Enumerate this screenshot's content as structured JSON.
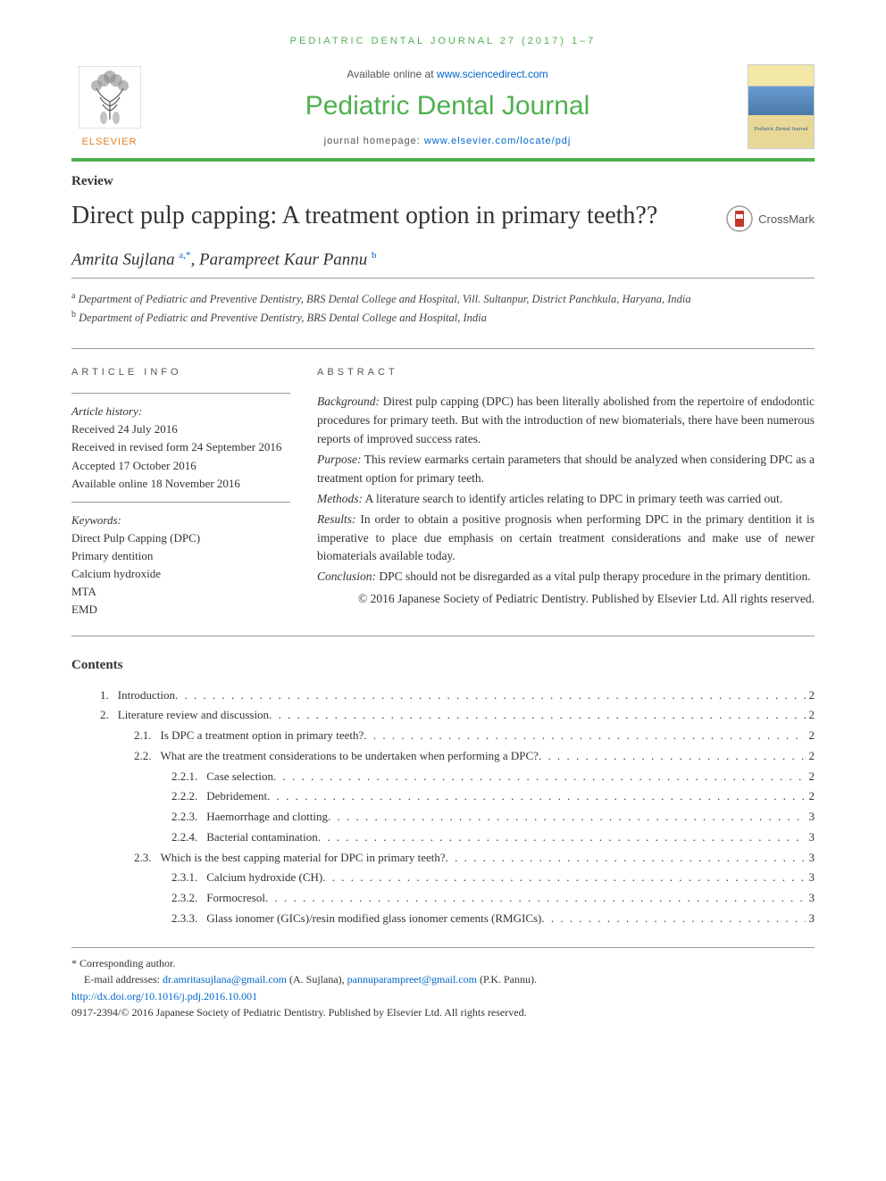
{
  "running_head": "PEDIATRIC DENTAL JOURNAL 27 (2017) 1–7",
  "masthead": {
    "available_prefix": "Available online at ",
    "available_link": "www.sciencedirect.com",
    "journal_name": "Pediatric Dental Journal",
    "homepage_prefix": "journal homepage: ",
    "homepage_link": "www.elsevier.com/locate/pdj",
    "elsevier_label": "ELSEVIER",
    "cover_title": "Pediatric Dental Journal"
  },
  "article_type": "Review",
  "title": "Direct pulp capping: A treatment option in primary teeth??",
  "crossmark_label": "CrossMark",
  "authors": {
    "a1_name": "Amrita Sujlana ",
    "a1_sup": "a,*",
    "sep": ", ",
    "a2_name": "Parampreet Kaur Pannu ",
    "a2_sup": "b"
  },
  "affiliations": {
    "a": "Department of Pediatric and Preventive Dentistry, BRS Dental College and Hospital, Vill. Sultanpur, District Panchkula, Haryana, India",
    "b": "Department of Pediatric and Preventive Dentistry, BRS Dental College and Hospital, India"
  },
  "info": {
    "heading": "ARTICLE INFO",
    "history_heading": "Article history:",
    "received": "Received 24 July 2016",
    "revised": "Received in revised form 24 September 2016",
    "accepted": "Accepted 17 October 2016",
    "online": "Available online 18 November 2016",
    "keywords_heading": "Keywords:",
    "kw1": "Direct Pulp Capping (DPC)",
    "kw2": "Primary dentition",
    "kw3": "Calcium hydroxide",
    "kw4": "MTA",
    "kw5": "EMD"
  },
  "abstract": {
    "heading": "ABSTRACT",
    "background_label": "Background:",
    "background": " Direst pulp capping (DPC) has been literally abolished from the repertoire of endodontic procedures for primary teeth. But with the introduction of new biomaterials, there have been numerous reports of improved success rates.",
    "purpose_label": "Purpose:",
    "purpose": " This review earmarks certain parameters that should be analyzed when considering DPC as a treatment option for primary teeth.",
    "methods_label": "Methods:",
    "methods": " A literature search to identify articles relating to DPC in primary teeth was carried out.",
    "results_label": "Results:",
    "results": " In order to obtain a positive prognosis when performing DPC in the primary dentition it is imperative to place due emphasis on certain treatment considerations and make use of newer biomaterials available today.",
    "conclusion_label": "Conclusion:",
    "conclusion": " DPC should not be disregarded as a vital pulp therapy procedure in the primary dentition.",
    "copyright": "© 2016 Japanese Society of Pediatric Dentistry. Published by Elsevier Ltd. All rights reserved."
  },
  "contents_heading": "Contents",
  "toc": [
    {
      "num": "1.",
      "title": "Introduction",
      "page": "2",
      "indent": 1
    },
    {
      "num": "2.",
      "title": "Literature review and discussion",
      "page": "2",
      "indent": 1
    },
    {
      "num": "2.1.",
      "title": "Is DPC a treatment option in primary teeth?",
      "page": "2",
      "indent": 2
    },
    {
      "num": "2.2.",
      "title": "What are the treatment considerations to be undertaken when performing a DPC?",
      "page": "2",
      "indent": 2
    },
    {
      "num": "2.2.1.",
      "title": "Case selection",
      "page": "2",
      "indent": 3
    },
    {
      "num": "2.2.2.",
      "title": "Debridement",
      "page": "2",
      "indent": 3
    },
    {
      "num": "2.2.3.",
      "title": "Haemorrhage and clotting",
      "page": "3",
      "indent": 3
    },
    {
      "num": "2.2.4.",
      "title": "Bacterial contamination",
      "page": "3",
      "indent": 3
    },
    {
      "num": "2.3.",
      "title": "Which is the best capping material for DPC in primary teeth?",
      "page": "3",
      "indent": 2
    },
    {
      "num": "2.3.1.",
      "title": "Calcium hydroxide (CH)",
      "page": "3",
      "indent": 3
    },
    {
      "num": "2.3.2.",
      "title": "Formocresol",
      "page": "3",
      "indent": 3
    },
    {
      "num": "2.3.3.",
      "title": "Glass ionomer (GICs)/resin modified glass ionomer cements (RMGICs)",
      "page": "3",
      "indent": 3
    }
  ],
  "footer": {
    "corr": "* Corresponding author.",
    "email_prefix": "E-mail addresses: ",
    "email1": "dr.amritasujlana@gmail.com",
    "email1_who": " (A. Sujlana), ",
    "email2": "pannuparampreet@gmail.com",
    "email2_who": " (P.K. Pannu).",
    "doi": "http://dx.doi.org/10.1016/j.pdj.2016.10.001",
    "issn_copy": "0917-2394/© 2016 Japanese Society of Pediatric Dentistry. Published by Elsevier Ltd. All rights reserved."
  },
  "colors": {
    "accent": "#4fb14f",
    "link": "#0066cc",
    "orange": "#e67e22"
  }
}
